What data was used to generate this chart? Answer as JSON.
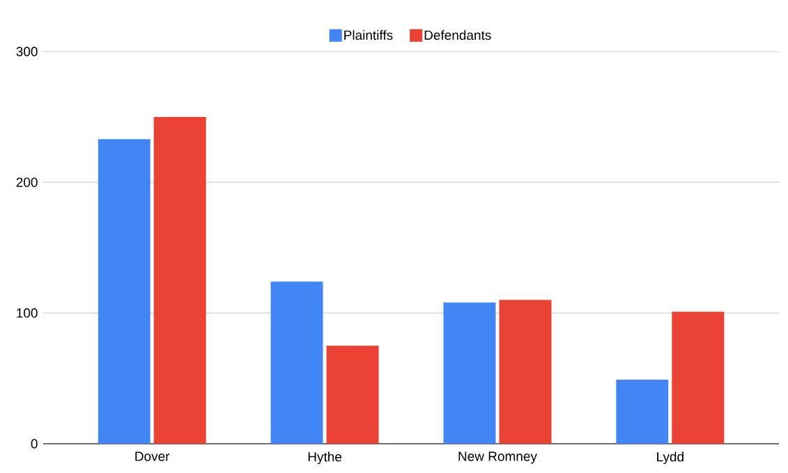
{
  "chart_data": {
    "type": "bar",
    "categories": [
      "Dover",
      "Hythe",
      "New Romney",
      "Lydd"
    ],
    "series": [
      {
        "name": "Plaintiffs",
        "color": "#4285f4",
        "values": [
          233,
          124,
          108,
          49
        ]
      },
      {
        "name": "Defendants",
        "color": "#ea4335",
        "values": [
          250,
          75,
          110,
          101
        ]
      }
    ],
    "ylim": [
      0,
      300
    ],
    "yticks": [
      0,
      100,
      200,
      300
    ],
    "grid": "y",
    "legend": "top"
  }
}
